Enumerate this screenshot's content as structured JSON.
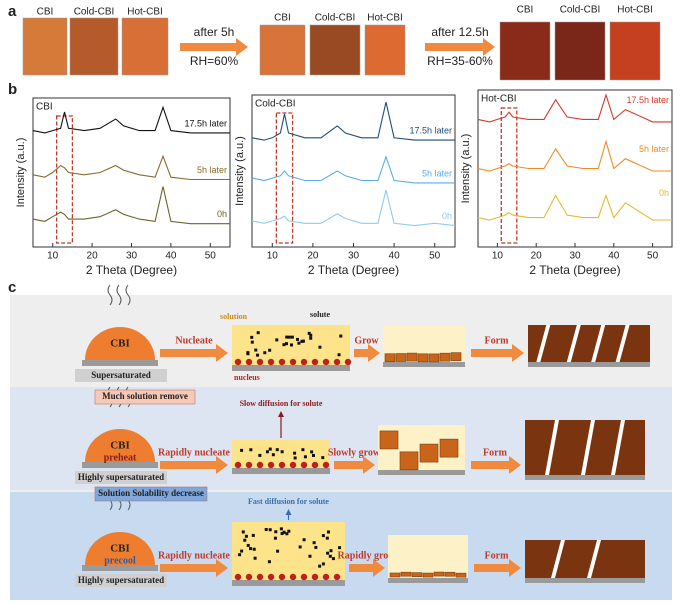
{
  "panels": {
    "a": "a",
    "b": "b",
    "c": "c"
  },
  "panel_a": {
    "photo_labels": [
      [
        "CBI",
        "Cold-CBI",
        "Hot-CBI"
      ],
      [
        "CBI",
        "Cold-CBI",
        "Hot-CBI"
      ],
      [
        "CBI",
        "Cold-CBI",
        "Hot-CBI"
      ]
    ],
    "arrows": [
      {
        "top": "after 5h",
        "bottom": "RH=60%"
      },
      {
        "top": "after 12.5h",
        "bottom": "RH=35-60%"
      }
    ]
  },
  "chart_data": [
    {
      "type": "line",
      "title": "CBI",
      "xlabel": "2 Theta (Degree)",
      "ylabel": "Intensity (a.u.)",
      "xlim": [
        5,
        55
      ],
      "xticks": [
        10,
        20,
        30,
        40,
        50
      ],
      "ylim": [
        0,
        3.2
      ],
      "highlight_range": [
        11,
        15
      ],
      "x": [
        5,
        8,
        10,
        12,
        13,
        14,
        18,
        22,
        26,
        28,
        32,
        36,
        38,
        40,
        45,
        50,
        55
      ],
      "series": [
        {
          "name": "17.5h later",
          "color": "#111111",
          "values": [
            2.5,
            2.45,
            2.5,
            2.55,
            2.9,
            2.55,
            2.5,
            2.55,
            2.75,
            2.6,
            2.5,
            2.5,
            3.0,
            2.5,
            2.45,
            2.45,
            2.45
          ]
        },
        {
          "name": "5h later",
          "color": "#8a6a2a",
          "values": [
            1.55,
            1.5,
            1.6,
            1.75,
            1.7,
            1.6,
            1.55,
            1.6,
            1.75,
            1.65,
            1.55,
            1.5,
            1.95,
            1.5,
            1.45,
            1.45,
            1.45
          ]
        },
        {
          "name": "0h",
          "color": "#6e6428",
          "values": [
            0.6,
            0.55,
            0.65,
            0.75,
            0.7,
            0.6,
            0.6,
            0.65,
            0.8,
            0.7,
            0.6,
            0.55,
            1.3,
            0.55,
            0.5,
            0.5,
            0.5
          ]
        }
      ]
    },
    {
      "type": "line",
      "title": "Cold-CBI",
      "xlabel": "2 Theta (Degree)",
      "ylabel": "Intensity (a.u.)",
      "xlim": [
        5,
        55
      ],
      "xticks": [
        10,
        20,
        30,
        40,
        50
      ],
      "ylim": [
        0,
        3.2
      ],
      "highlight_range": [
        11,
        15
      ],
      "x": [
        5,
        8,
        10,
        12,
        13,
        14,
        18,
        22,
        26,
        28,
        32,
        36,
        38,
        40,
        45,
        50,
        55
      ],
      "series": [
        {
          "name": "17.5h later",
          "color": "#1f4e79",
          "values": [
            2.3,
            2.25,
            2.3,
            2.4,
            2.8,
            2.4,
            2.3,
            2.3,
            2.55,
            2.4,
            2.3,
            2.3,
            3.05,
            2.3,
            2.25,
            2.25,
            2.25
          ]
        },
        {
          "name": "5h later",
          "color": "#5aaee0",
          "values": [
            1.45,
            1.4,
            1.45,
            1.5,
            1.6,
            1.5,
            1.4,
            1.4,
            1.6,
            1.5,
            1.4,
            1.4,
            1.9,
            1.4,
            1.35,
            1.35,
            1.35
          ]
        },
        {
          "name": "0h",
          "color": "#8fcbef",
          "values": [
            0.55,
            0.5,
            0.55,
            0.6,
            0.65,
            0.55,
            0.5,
            0.5,
            0.7,
            0.6,
            0.5,
            0.5,
            1.2,
            0.5,
            0.45,
            0.5,
            0.45
          ]
        }
      ]
    },
    {
      "type": "line",
      "title": "Hot-CBI",
      "xlabel": "2 Theta (Degree)",
      "ylabel": "Intensity (a.u.)",
      "xlim": [
        5,
        55
      ],
      "xticks": [
        10,
        20,
        30,
        40,
        50
      ],
      "ylim": [
        0,
        3.2
      ],
      "highlight_range": [
        11,
        15
      ],
      "x": [
        5,
        8,
        10,
        12,
        13,
        14,
        18,
        22,
        25,
        28,
        32,
        36,
        38,
        40,
        43,
        50,
        55
      ],
      "series": [
        {
          "name": "17.5h later",
          "color": "#d63a2a",
          "values": [
            2.6,
            2.55,
            2.6,
            2.65,
            2.75,
            2.65,
            2.6,
            2.6,
            3.0,
            2.65,
            2.6,
            2.6,
            3.1,
            2.6,
            2.8,
            2.55,
            2.55
          ]
        },
        {
          "name": "5h later",
          "color": "#f08a28",
          "values": [
            1.6,
            1.55,
            1.6,
            1.65,
            1.7,
            1.65,
            1.6,
            1.6,
            2.0,
            1.65,
            1.6,
            1.6,
            2.15,
            1.6,
            1.8,
            1.55,
            1.55
          ]
        },
        {
          "name": "0h",
          "color": "#e9b830",
          "values": [
            0.6,
            0.55,
            0.6,
            0.65,
            0.7,
            0.65,
            0.6,
            0.6,
            1.05,
            0.65,
            0.6,
            0.6,
            1.05,
            0.6,
            0.9,
            0.55,
            0.55
          ]
        }
      ]
    }
  ],
  "panel_c": {
    "rows": [
      {
        "dome": "CBI",
        "state": "Supersaturated",
        "step1": "Nucleate",
        "solution": "solution",
        "solute": "solute",
        "nucleus": "nucleus",
        "step2": "Grow",
        "step3": "Form"
      },
      {
        "tag": "Much solution remove",
        "dome": "CBI",
        "treatment": "preheat",
        "state": "Highly supersaturated",
        "step1": "Rapidly nucleate",
        "diffusion": "Slow diffusion for solute",
        "step2": "Slowly grow",
        "step3": "Form"
      },
      {
        "tag": "Solution  Solability decrease",
        "dome": "CBI",
        "treatment": "precool",
        "state": "Highly supersaturated",
        "step1": "Rapidly nucleate",
        "diffusion": "Fast diffusion for solute",
        "step2": "Rapidly grow",
        "step3": "Form"
      }
    ]
  }
}
